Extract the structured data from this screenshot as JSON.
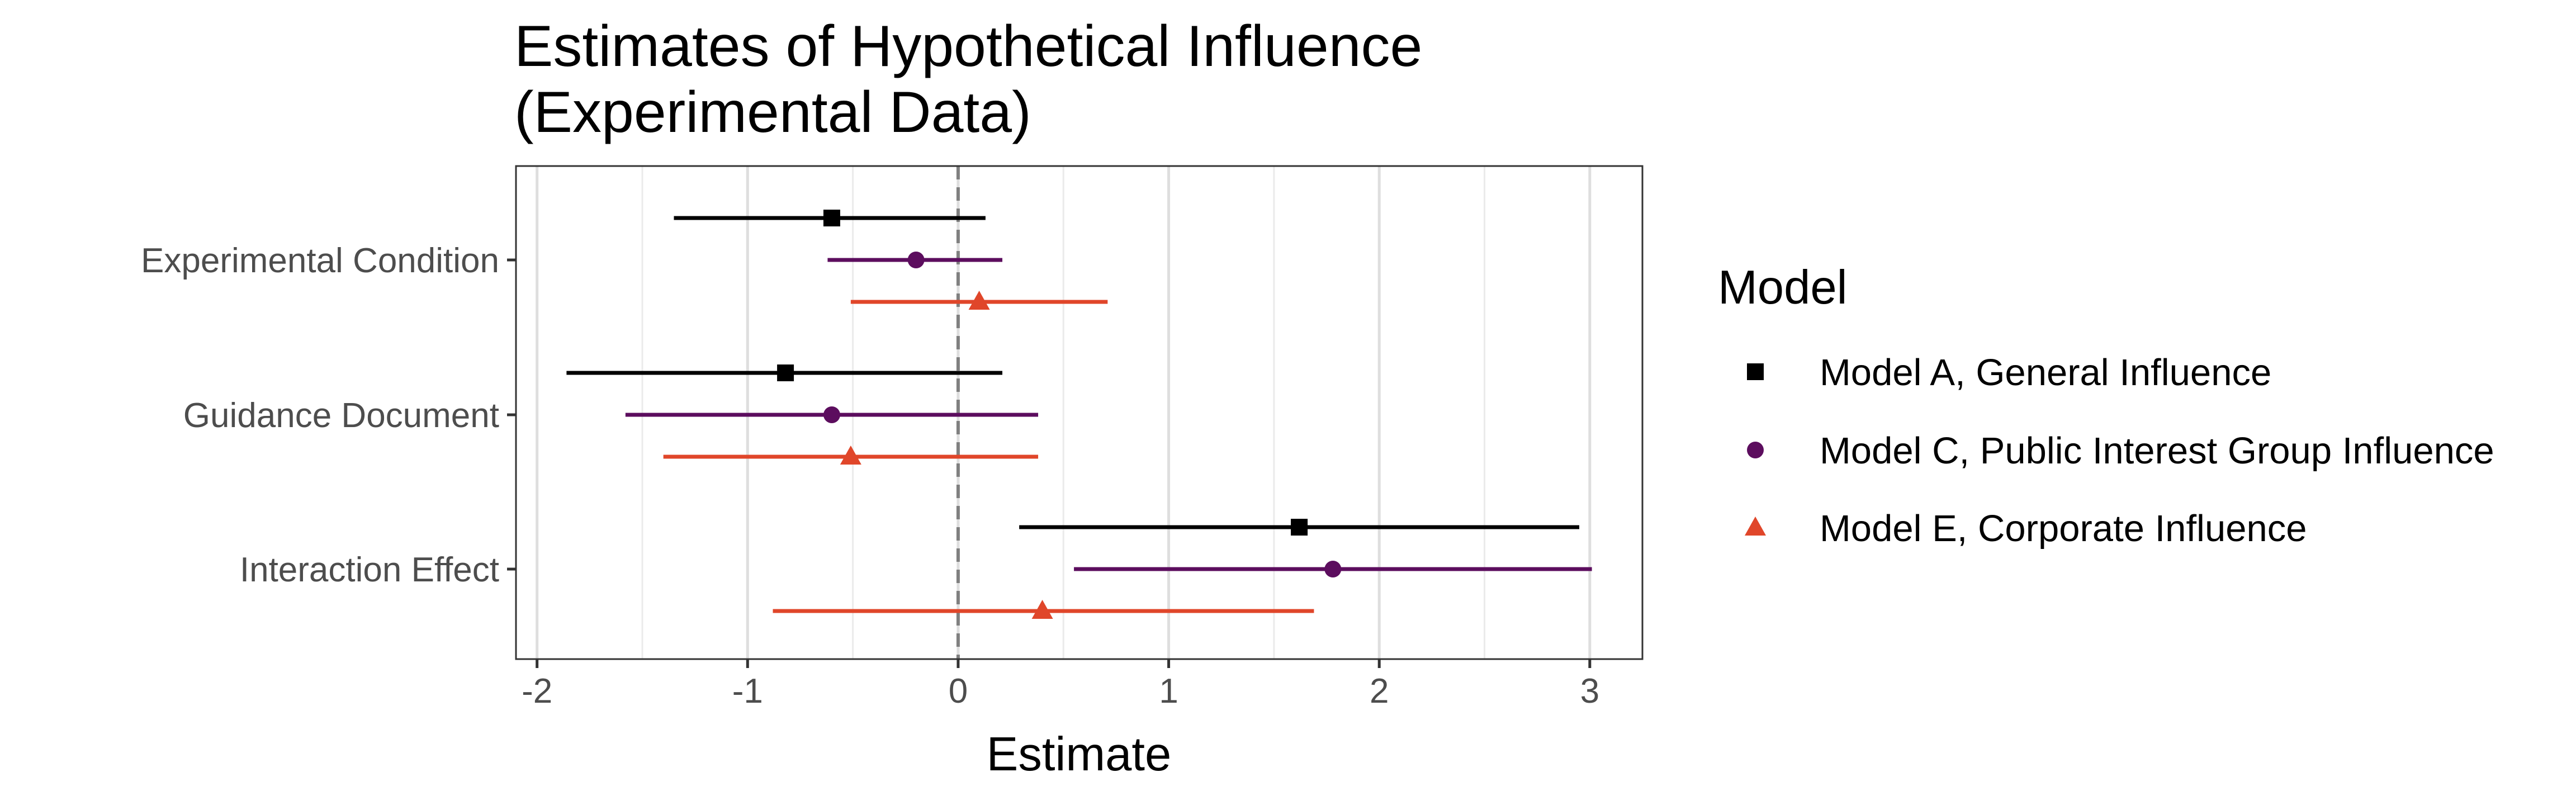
{
  "chart_data": {
    "type": "scatter",
    "subtype": "coefficient-plot-with-intervals",
    "title_lines": [
      "Estimates of Hypothetical Influence",
      "(Experimental Data)"
    ],
    "xlabel": "Estimate",
    "ylabel": "",
    "xlim": [
      -2.1,
      3.25
    ],
    "x_ticks": [
      -2,
      -1,
      0,
      1,
      2,
      3
    ],
    "x_tick_labels": [
      "-2",
      "-1",
      "0",
      "1",
      "2",
      "3"
    ],
    "categories": [
      "Experimental Condition",
      "Guidance Document",
      "Interaction Effect"
    ],
    "reference_line": {
      "x": 0,
      "style": "dashed",
      "color": "#808080"
    },
    "grid": true,
    "legend": {
      "title": "Model",
      "position": "right"
    },
    "series": [
      {
        "name": "Model A, General  Influence",
        "color": "#000000",
        "marker": "square",
        "points": [
          {
            "category": "Experimental Condition",
            "estimate": -0.6,
            "low": -1.35,
            "high": 0.13
          },
          {
            "category": "Guidance Document",
            "estimate": -0.82,
            "low": -1.86,
            "high": 0.21
          },
          {
            "category": "Interaction Effect",
            "estimate": 1.62,
            "low": 0.29,
            "high": 2.95
          }
        ]
      },
      {
        "name": "Model C, Public Interest Group Influence",
        "color": "#5c0d5e",
        "marker": "circle",
        "points": [
          {
            "category": "Experimental Condition",
            "estimate": -0.2,
            "low": -0.62,
            "high": 0.21
          },
          {
            "category": "Guidance Document",
            "estimate": -0.6,
            "low": -1.58,
            "high": 0.38
          },
          {
            "category": "Interaction Effect",
            "estimate": 1.78,
            "low": 0.55,
            "high": 3.01
          }
        ]
      },
      {
        "name": "Model E, Corporate Influence",
        "color": "#e0462a",
        "marker": "triangle",
        "points": [
          {
            "category": "Experimental Condition",
            "estimate": 0.1,
            "low": -0.51,
            "high": 0.71
          },
          {
            "category": "Guidance Document",
            "estimate": -0.51,
            "low": -1.4,
            "high": 0.38
          },
          {
            "category": "Interaction Effect",
            "estimate": 0.4,
            "low": -0.88,
            "high": 1.69
          }
        ]
      }
    ]
  }
}
